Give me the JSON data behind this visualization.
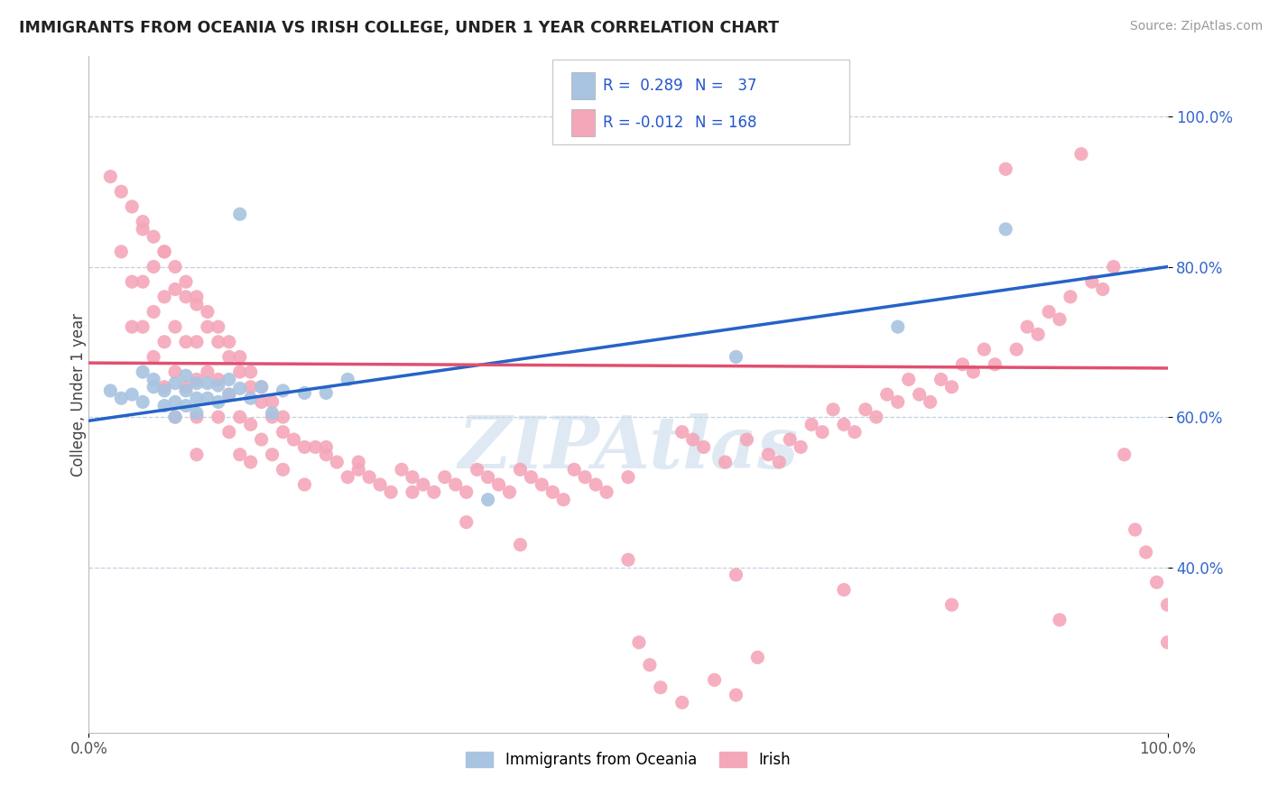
{
  "title": "IMMIGRANTS FROM OCEANIA VS IRISH COLLEGE, UNDER 1 YEAR CORRELATION CHART",
  "source_text": "Source: ZipAtlas.com",
  "ylabel": "College, Under 1 year",
  "legend_labels": [
    "Immigrants from Oceania",
    "Irish"
  ],
  "oceania_color": "#a8c4e0",
  "irish_color": "#f4a7b9",
  "oceania_line_color": "#2563c7",
  "irish_line_color": "#e05070",
  "background_color": "#ffffff",
  "grid_color": "#c0d0e0",
  "oceania_R": 0.289,
  "irish_R": -0.012,
  "oceania_N": 37,
  "irish_N": 168,
  "oceania_line_x0": 0.0,
  "oceania_line_y0": 0.595,
  "oceania_line_x1": 1.0,
  "oceania_line_y1": 0.8,
  "irish_line_x0": 0.0,
  "irish_line_y0": 0.672,
  "irish_line_x1": 1.0,
  "irish_line_y1": 0.665,
  "xlim": [
    0.0,
    1.0
  ],
  "ylim": [
    0.18,
    1.08
  ],
  "yticks": [
    0.4,
    0.6,
    0.8,
    1.0
  ],
  "ytick_labels": [
    "40.0%",
    "60.0%",
    "80.0%",
    "100.0%"
  ],
  "xticks": [
    0.0,
    1.0
  ],
  "xtick_labels": [
    "0.0%",
    "100.0%"
  ]
}
